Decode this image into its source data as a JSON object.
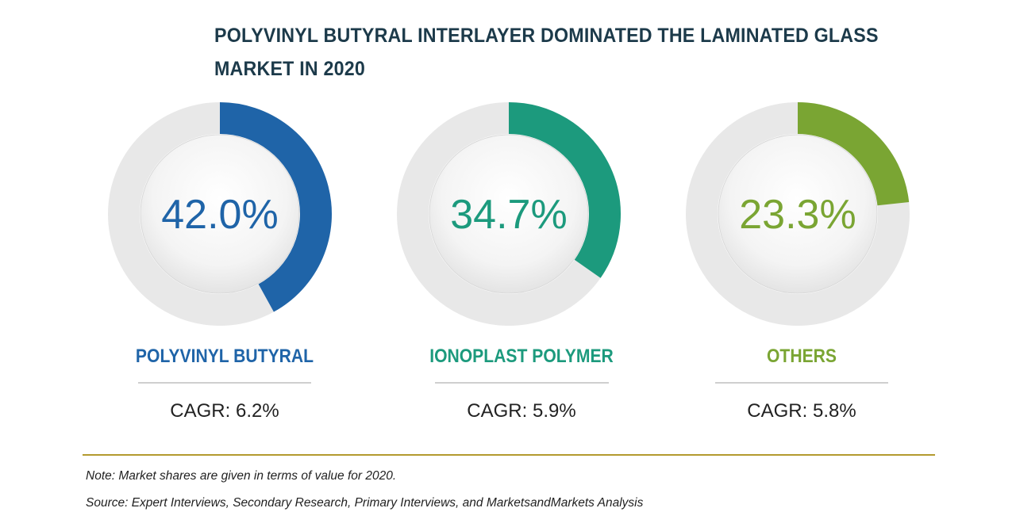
{
  "title": "POLYVINYL BUTYRAL INTERLAYER DOMINATED THE LAMINATED GLASS MARKET IN 2020",
  "chart_data": {
    "type": "pie",
    "title": "POLYVINYL BUTYRAL INTERLAYER DOMINATED THE LAMINATED GLASS MARKET IN 2020",
    "unit": "%",
    "segments": [
      {
        "name": "POLYVINYL BUTYRAL",
        "value": 42.0,
        "label": "42.0%",
        "cagr": "CAGR: 6.2%",
        "color": "#1f64a8"
      },
      {
        "name": "IONOPLAST POLYMER",
        "value": 34.7,
        "label": "34.7%",
        "cagr": "CAGR: 5.9%",
        "color": "#1c9a7d"
      },
      {
        "name": "OTHERS",
        "value": 23.3,
        "label": "23.3%",
        "cagr": "CAGR: 5.8%",
        "color": "#7aa533"
      }
    ],
    "track_color": "#e8e8e8"
  },
  "footer": {
    "note": "Note: Market shares are given in terms of value for 2020.",
    "source": "Source: Expert Interviews, Secondary Research, Primary Interviews, and MarketsandMarkets Analysis"
  }
}
